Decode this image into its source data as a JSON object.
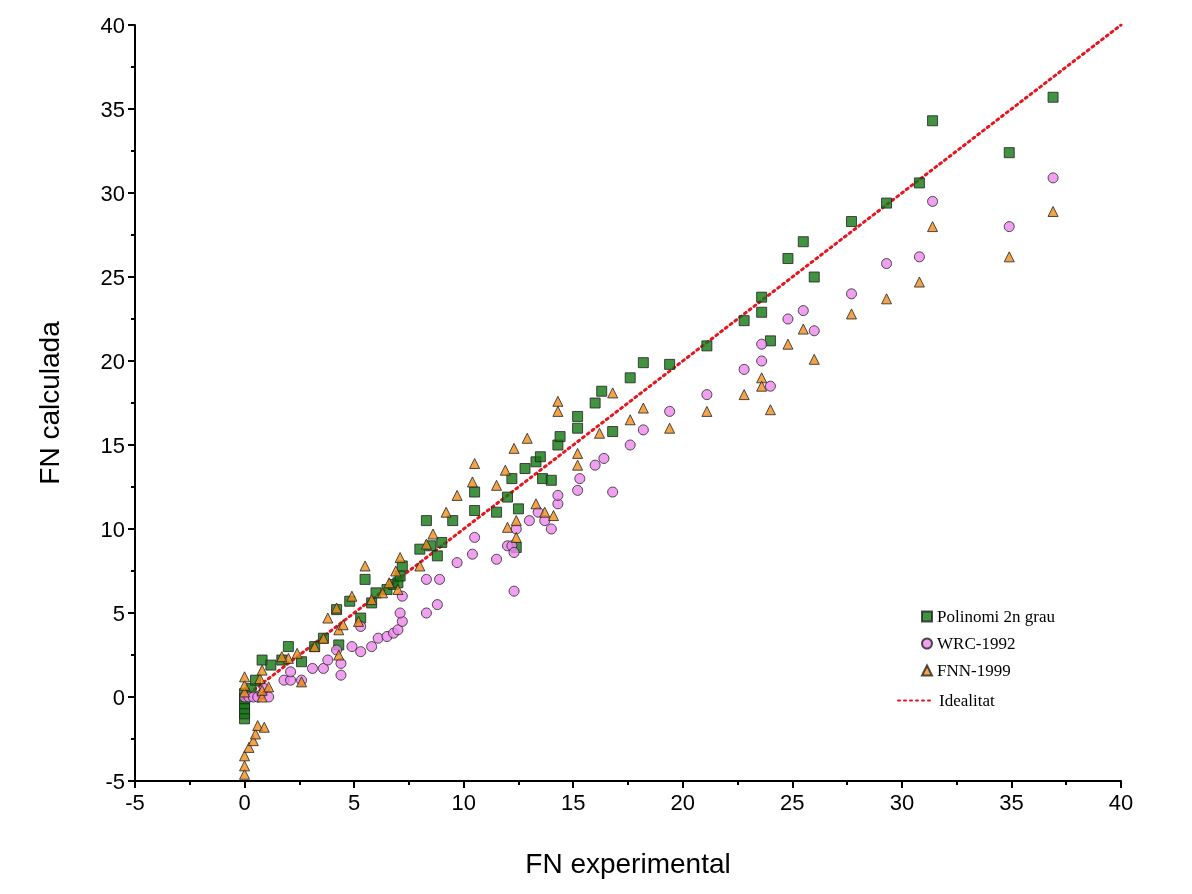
{
  "chart_data": {
    "type": "scatter",
    "xlabel": "FN experimental",
    "ylabel": "FN calculada",
    "xlim": [
      -5,
      40
    ],
    "ylim": [
      -5,
      40
    ],
    "xticks": [
      -5,
      0,
      5,
      10,
      15,
      20,
      25,
      30,
      35,
      40
    ],
    "yticks": [
      -5,
      0,
      5,
      10,
      15,
      20,
      25,
      30,
      35,
      40
    ],
    "grid": false,
    "legend": "bottom right",
    "series": [
      {
        "name": "Polinomi 2n grau",
        "marker": "square",
        "color": "#117711",
        "x": [
          0,
          0,
          0,
          0,
          0,
          0,
          0.3,
          0.5,
          0.8,
          1.2,
          2,
          1.7,
          2.6,
          3.2,
          3.6,
          4.2,
          4.3,
          4.8,
          5.5,
          5.3,
          5.8,
          6,
          6.5,
          6.8,
          7,
          7.1,
          7.2,
          8,
          8.3,
          8.5,
          9,
          8.8,
          9.5,
          10.5,
          10.5,
          11.5,
          12,
          12.2,
          12.4,
          12.5,
          12.8,
          13.3,
          13.5,
          13.6,
          14,
          14.3,
          14.4,
          15.2,
          15.2,
          16,
          16.3,
          16.8,
          17.6,
          18.2,
          19.4,
          21.1,
          22.8,
          23.6,
          23.6,
          24,
          24.8,
          25.5,
          26,
          27.7,
          29.3,
          30.8,
          31.4,
          34.9,
          36.9
        ],
        "values": [
          -1.3,
          -1,
          -0.7,
          -0.4,
          -0.1,
          0.2,
          0.5,
          1,
          2.2,
          1.9,
          3,
          2.2,
          2.1,
          3,
          3.5,
          5.2,
          3.1,
          5.7,
          7,
          4.7,
          5.6,
          6.2,
          6.4,
          6.7,
          6.8,
          7.2,
          7.8,
          8.8,
          10.5,
          9,
          9.2,
          8.4,
          10.5,
          11.1,
          12.2,
          11,
          11.9,
          13,
          8.9,
          11.2,
          13.6,
          14,
          14.3,
          13,
          12.9,
          15,
          15.5,
          16,
          16.7,
          17.5,
          18.2,
          15.8,
          19,
          19.9,
          19.8,
          20.9,
          22.4,
          22.9,
          23.8,
          21.2,
          26.1,
          27.1,
          25,
          28.3,
          29.4,
          30.6,
          34.3,
          32.4,
          35.7
        ]
      },
      {
        "name": "WRC-1992",
        "marker": "circle",
        "color": "#ee88ee",
        "x": [
          0,
          0.2,
          0.4,
          0.6,
          0.8,
          0.9,
          1.1,
          1.8,
          2.1,
          2.6,
          2.1,
          3.1,
          3.6,
          3.8,
          4.4,
          4.4,
          4.2,
          4.9,
          5.3,
          5.3,
          5.8,
          6.1,
          6.5,
          6.8,
          7,
          7.2,
          7.1,
          7.2,
          8.3,
          8.8,
          8.3,
          8.9,
          9.7,
          10.4,
          10.5,
          11.5,
          12,
          12.2,
          12.3,
          12.3,
          12.4,
          13,
          13.4,
          13.7,
          14,
          14.3,
          14.3,
          15.2,
          15.3,
          16,
          16.4,
          16.8,
          17.6,
          18.2,
          19.4,
          21.1,
          22.8,
          23.6,
          23.6,
          24,
          24.8,
          25.5,
          26,
          27.7,
          29.3,
          30.8,
          31.4,
          34.9,
          36.9
        ],
        "values": [
          0,
          0,
          0,
          0,
          0.2,
          0.5,
          0,
          1,
          1,
          1,
          1.5,
          1.7,
          1.7,
          2.2,
          1.3,
          2,
          2.8,
          3,
          2.7,
          4.2,
          3,
          3.5,
          3.6,
          3.8,
          4,
          4.5,
          5,
          6,
          5,
          5.5,
          7,
          7,
          8,
          8.5,
          9.5,
          8.2,
          9,
          9,
          6.3,
          8.6,
          10,
          10.5,
          11,
          10.5,
          10,
          11.5,
          12,
          12.3,
          13,
          13.8,
          14.2,
          12.2,
          15,
          15.9,
          17,
          18,
          19.5,
          20,
          21,
          18.5,
          22.5,
          23,
          21.8,
          24,
          25.8,
          26.2,
          29.5,
          28,
          30.9
        ]
      },
      {
        "name": "FNN-1999",
        "marker": "triangle",
        "color": "#f08c1a",
        "x": [
          0,
          0,
          0,
          0.2,
          0.4,
          0.5,
          0.6,
          0.9,
          0,
          0,
          0,
          0.8,
          0.8,
          0.7,
          0.8,
          1.1,
          2,
          1.7,
          2.6,
          2.4,
          3.2,
          3.6,
          3.8,
          4.2,
          4.3,
          4.3,
          4.5,
          4.9,
          5.5,
          5.2,
          5.8,
          6.3,
          6.6,
          6.9,
          7.1,
          7,
          8,
          8.3,
          8.6,
          9.2,
          9.7,
          10.4,
          10.5,
          11.5,
          11.9,
          12,
          12.3,
          12.4,
          12.4,
          12.9,
          13.3,
          13.7,
          14.1,
          14.3,
          14.3,
          15.2,
          15.2,
          16.2,
          16.8,
          17.6,
          18.2,
          19.4,
          21.1,
          22.8,
          23.6,
          23.6,
          24,
          24.8,
          25.5,
          26,
          27.7,
          29.3,
          30.8,
          31.4,
          34.9,
          36.9
        ],
        "values": [
          -4.6,
          -4.1,
          -3.5,
          -3,
          -2.6,
          -2.2,
          -1.7,
          -1.8,
          0.3,
          0.7,
          1.2,
          0,
          0.4,
          1.1,
          1.6,
          0.6,
          2.3,
          2.4,
          0.9,
          2.6,
          3,
          3.5,
          4.7,
          5.3,
          2.5,
          4,
          4.3,
          6,
          7.8,
          4.5,
          5.8,
          6.2,
          6.8,
          7.5,
          8.3,
          6.4,
          7.8,
          9.1,
          9.7,
          11,
          12,
          12.8,
          13.9,
          12.6,
          13.5,
          10.1,
          14.8,
          10.5,
          9.5,
          15.4,
          11.5,
          11,
          10.8,
          17,
          17.6,
          13.8,
          14.5,
          15.7,
          18.1,
          16.5,
          17.2,
          16,
          17,
          18,
          19,
          18.5,
          17.1,
          21,
          21.9,
          20.1,
          22.8,
          23.7,
          24.7,
          28,
          26.2,
          28.9
        ]
      },
      {
        "name": "Idealitat",
        "type": "line",
        "marker": "none",
        "line_style": "dotted",
        "color": "#e8141e",
        "x": [
          0,
          40
        ],
        "values": [
          0,
          40
        ]
      }
    ]
  }
}
